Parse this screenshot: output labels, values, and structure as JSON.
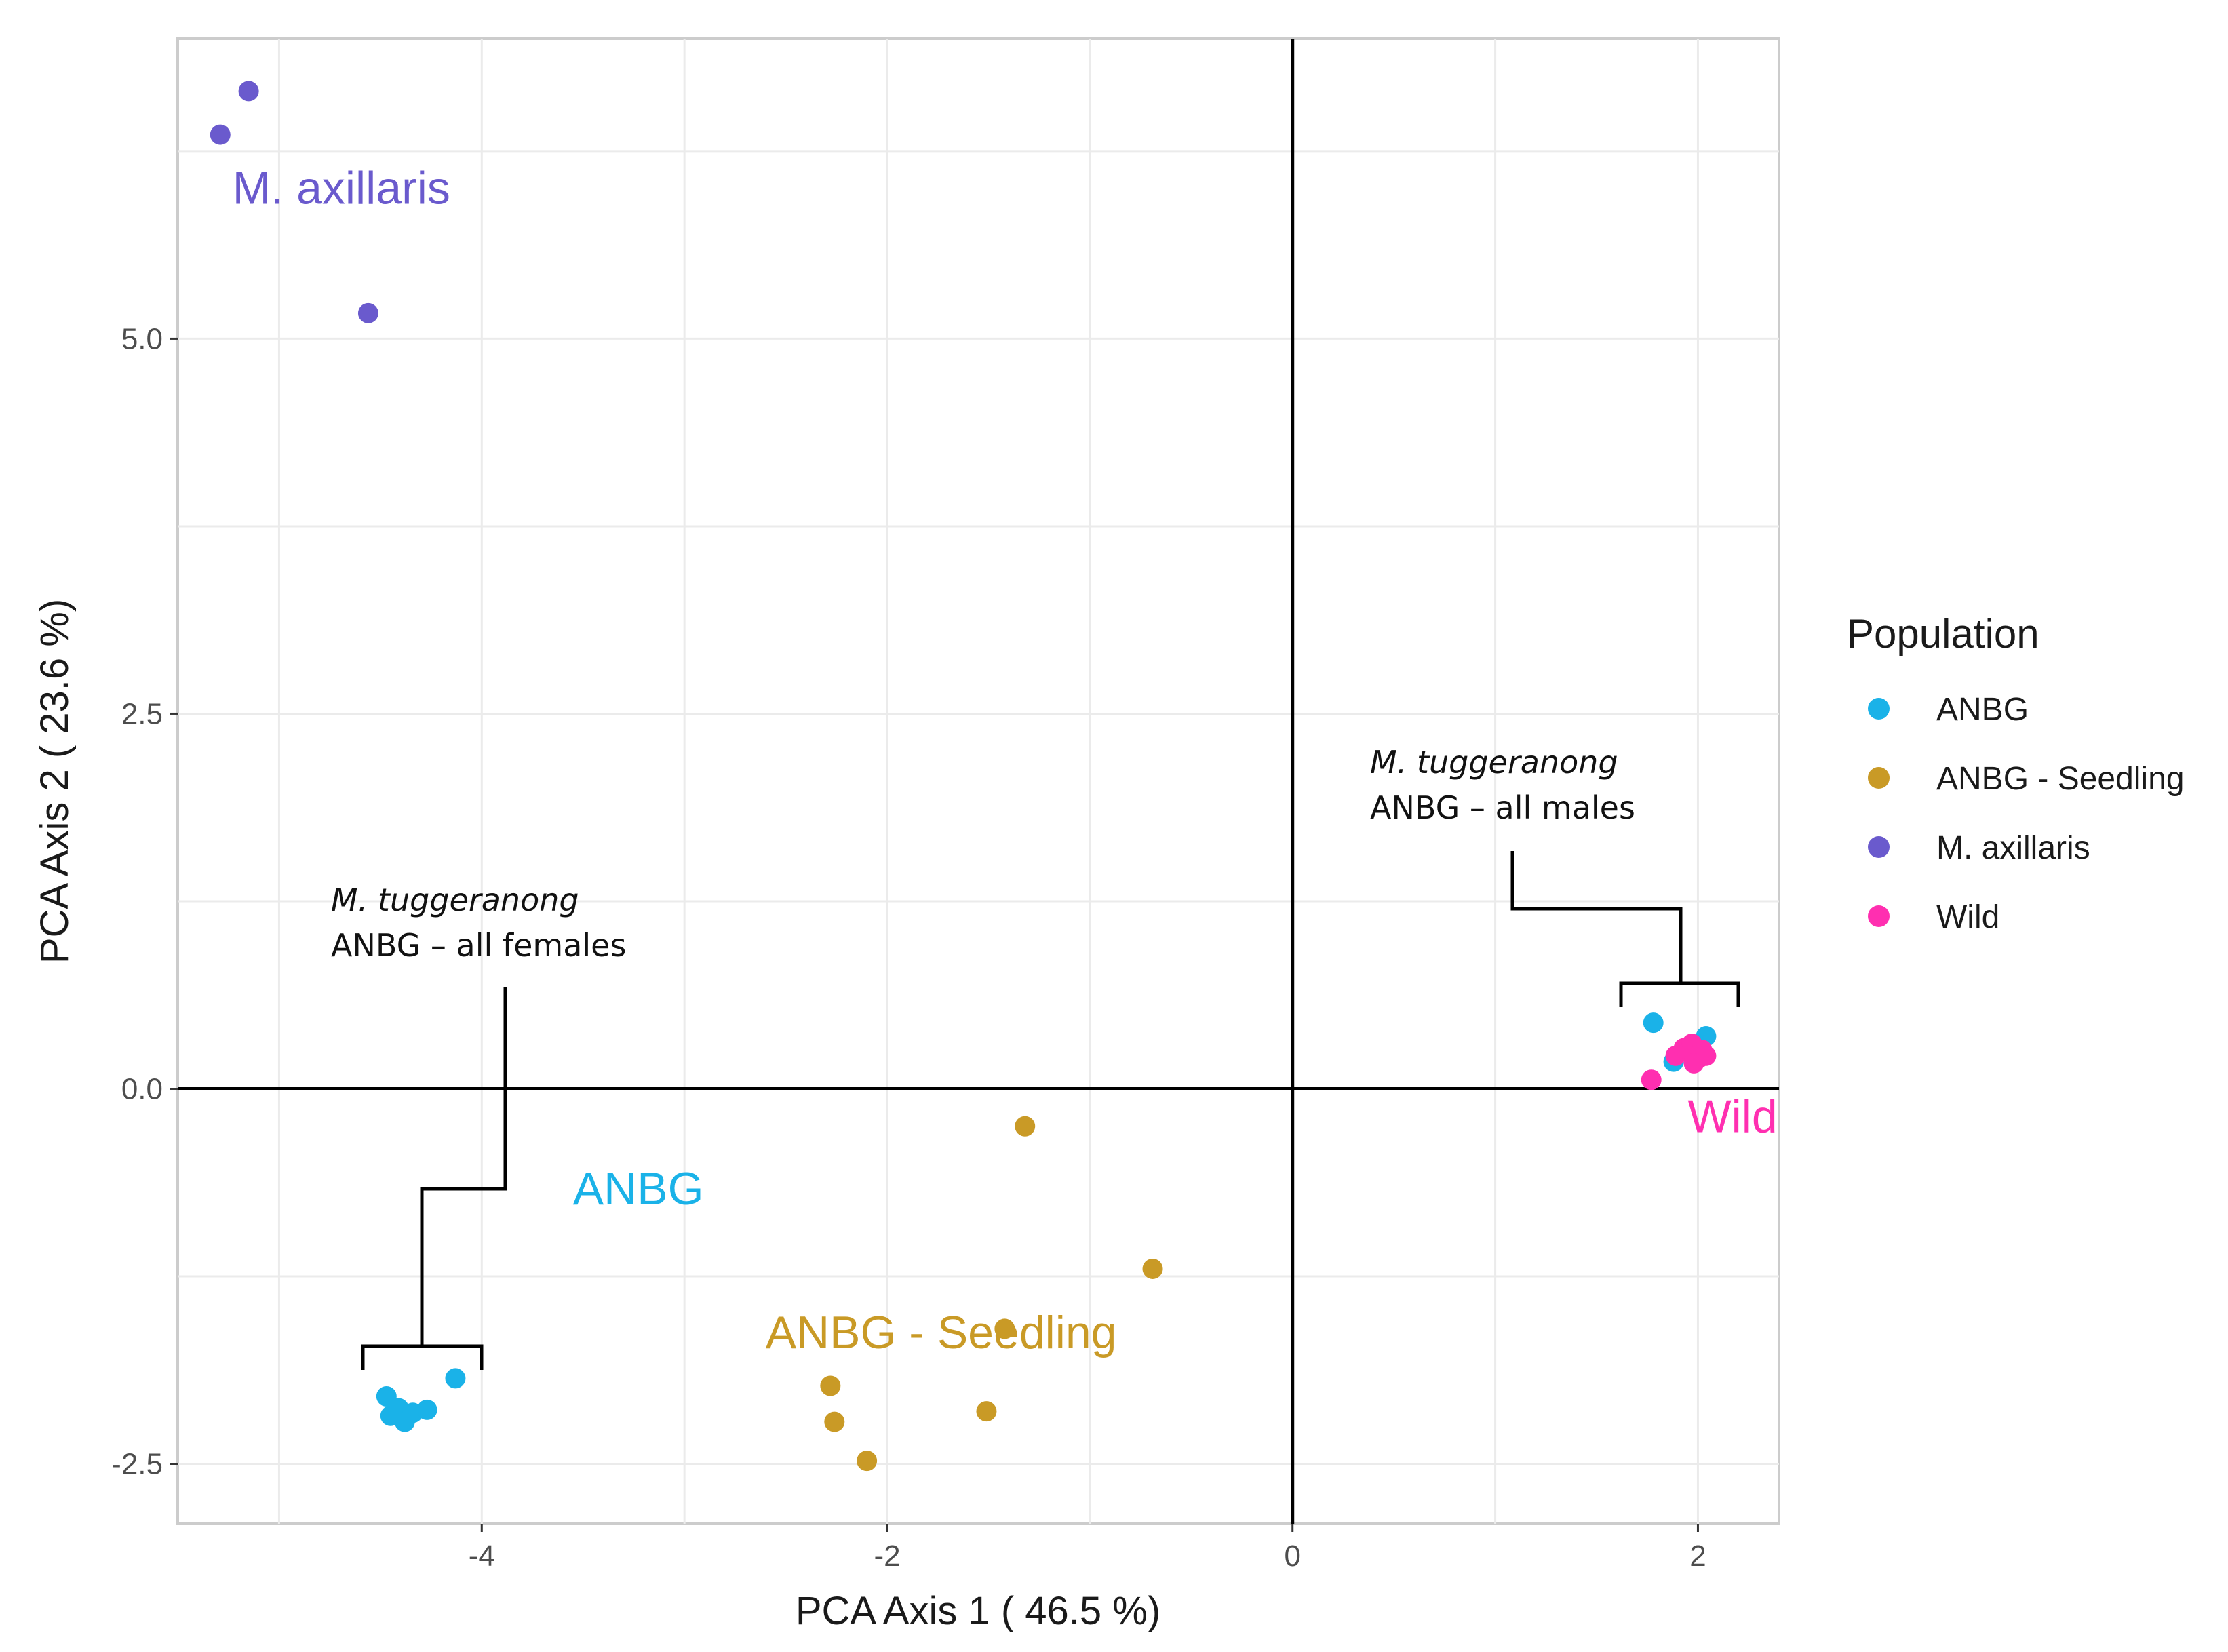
{
  "chart_data": {
    "type": "scatter",
    "title": "",
    "xlabel": "PCA Axis 1 ( 46.5 %)",
    "ylabel": "PCA Axis 2 ( 23.6 %)",
    "xlim": [
      -5.5,
      2.4
    ],
    "ylim": [
      -2.9,
      7.0
    ],
    "x_ticks": [
      -4,
      -2,
      0,
      2
    ],
    "x_tick_labels": [
      "-4",
      "-2",
      "0",
      "2"
    ],
    "y_ticks": [
      -2.5,
      0.0,
      2.5,
      5.0
    ],
    "y_tick_labels": [
      "-2.5",
      "0.0",
      "2.5",
      "5.0"
    ],
    "grid": true,
    "reference_lines": {
      "x": 0,
      "y": 0
    },
    "legend": {
      "title": "Population",
      "position": "right",
      "entries": [
        {
          "label": "ANBG",
          "color": "#1ab2e8"
        },
        {
          "label": "ANBG - Seedling",
          "color": "#c99a26"
        },
        {
          "label": "M. axillaris",
          "color": "#6a5acd"
        },
        {
          "label": "Wild",
          "color": "#ff2fb0"
        }
      ]
    },
    "series": [
      {
        "name": "ANBG",
        "color": "#1ab2e8",
        "points": [
          {
            "x": -4.47,
            "y": -2.05
          },
          {
            "x": -4.45,
            "y": -2.18
          },
          {
            "x": -4.41,
            "y": -2.13
          },
          {
            "x": -4.38,
            "y": -2.22
          },
          {
            "x": -4.34,
            "y": -2.16
          },
          {
            "x": -4.27,
            "y": -2.14
          },
          {
            "x": -4.13,
            "y": -1.93
          },
          {
            "x": 1.78,
            "y": 0.44
          },
          {
            "x": 1.88,
            "y": 0.18
          },
          {
            "x": 1.95,
            "y": 0.25
          },
          {
            "x": 2.04,
            "y": 0.35
          }
        ]
      },
      {
        "name": "ANBG - Seedling",
        "color": "#c99a26",
        "points": [
          {
            "x": -1.32,
            "y": -0.25
          },
          {
            "x": -0.69,
            "y": -1.2
          },
          {
            "x": -1.42,
            "y": -1.6
          },
          {
            "x": -2.28,
            "y": -1.98
          },
          {
            "x": -2.26,
            "y": -2.22
          },
          {
            "x": -1.51,
            "y": -2.15
          },
          {
            "x": -2.1,
            "y": -2.48
          }
        ]
      },
      {
        "name": "M. axillaris",
        "color": "#6a5acd",
        "points": [
          {
            "x": -5.15,
            "y": 6.65
          },
          {
            "x": -5.29,
            "y": 6.36
          },
          {
            "x": -4.56,
            "y": 5.17
          }
        ]
      },
      {
        "name": "Wild",
        "color": "#ff2fb0",
        "points": [
          {
            "x": 1.77,
            "y": 0.06
          },
          {
            "x": 1.89,
            "y": 0.22
          },
          {
            "x": 1.93,
            "y": 0.27
          },
          {
            "x": 1.97,
            "y": 0.3
          },
          {
            "x": 2.0,
            "y": 0.2
          },
          {
            "x": 2.02,
            "y": 0.26
          },
          {
            "x": 2.04,
            "y": 0.22
          },
          {
            "x": 1.98,
            "y": 0.17
          }
        ]
      }
    ],
    "group_labels": [
      {
        "text": "M. axillaris",
        "x": -5.23,
        "y": 5.9,
        "color": "#6a5acd"
      },
      {
        "text": "ANBG",
        "x": -3.55,
        "y": -0.77,
        "color": "#1ab2e8"
      },
      {
        "text": "ANBG - Seedling",
        "x": -2.6,
        "y": -1.73,
        "color": "#c99a26"
      },
      {
        "text": "Wild",
        "x": 1.95,
        "y": -0.29,
        "color": "#ff2fb0"
      }
    ],
    "annotations": [
      {
        "line1": "M. tuggeranong",
        "line2": "ANBG – all females"
      },
      {
        "line1": "M. tuggeranong",
        "line2": "ANBG – all males"
      }
    ]
  }
}
